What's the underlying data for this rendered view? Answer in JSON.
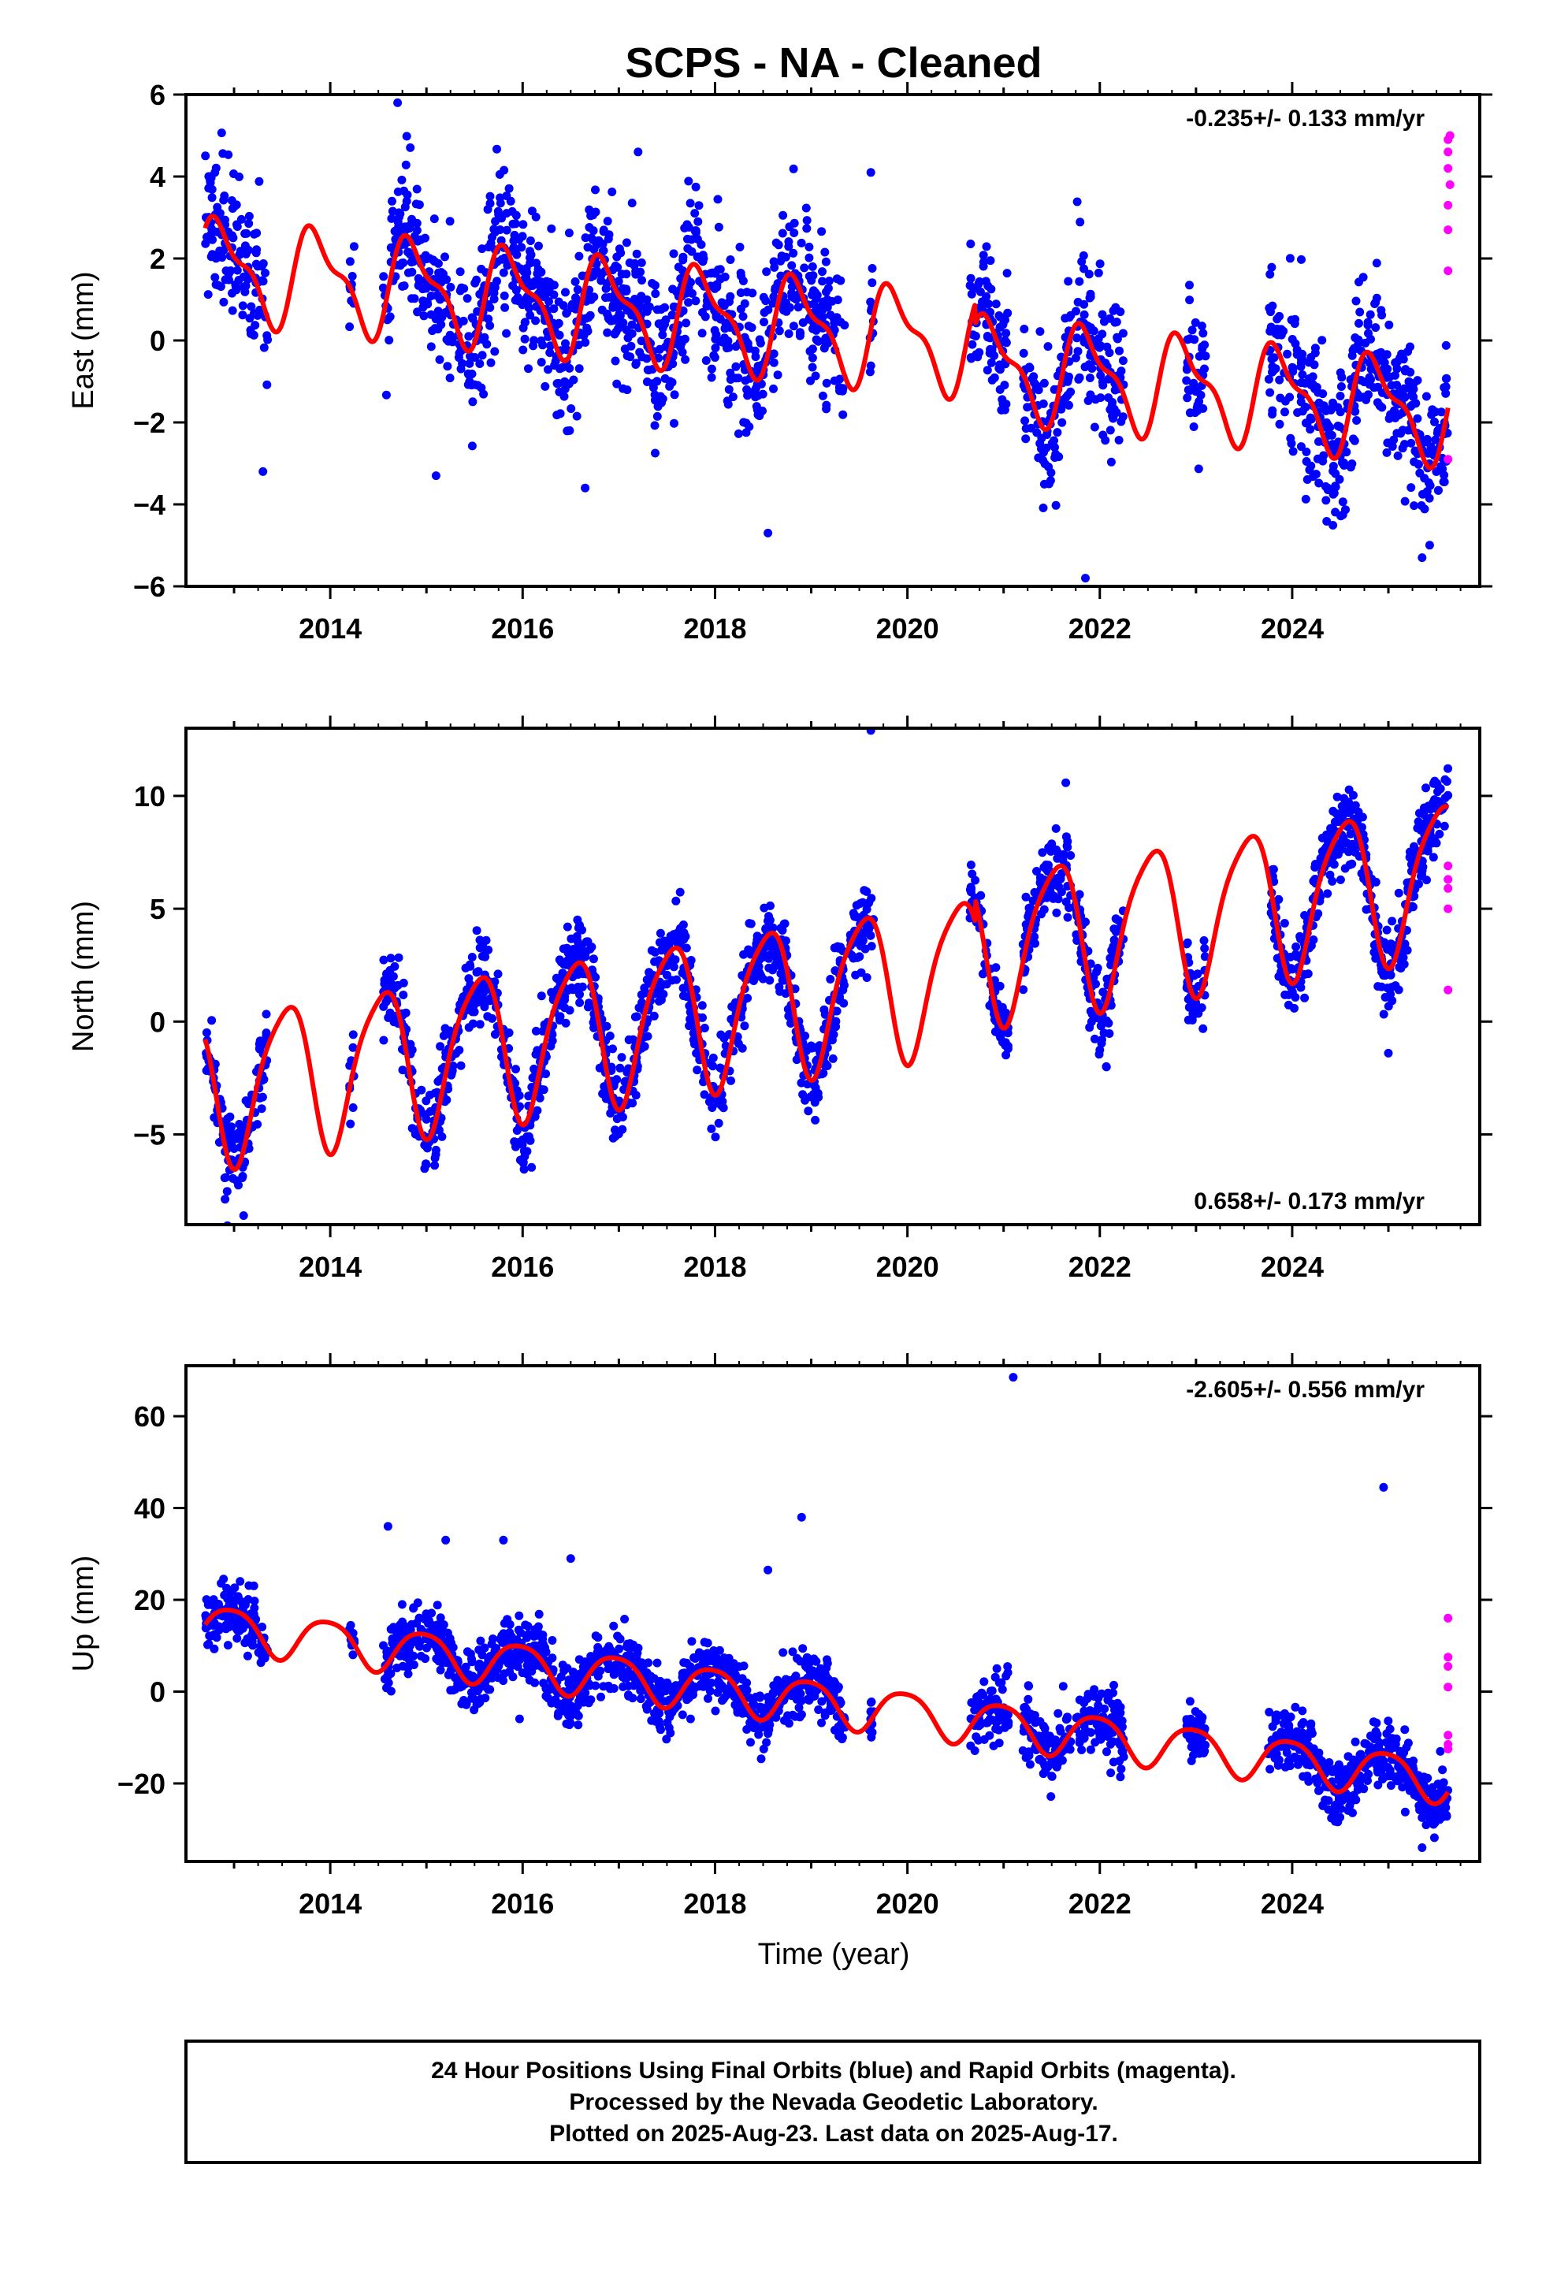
{
  "title": "SCPS  - NA - Cleaned",
  "xlabel": "Time (year)",
  "footer": [
    "24 Hour Positions Using Final Orbits (blue) and Rapid Orbits (magenta).",
    "Processed by the Nevada Geodetic Laboratory.",
    "Plotted on 2025-Aug-23. Last data on 2025-Aug-17."
  ],
  "colors": {
    "final": "#0000ff",
    "rapid": "#ff00ff",
    "model": "#ff0000",
    "frame": "#000000"
  },
  "chart_data": [
    {
      "type": "scatter",
      "ylabel": "East (mm)",
      "rate": "-0.235+/- 0.133 mm/yr",
      "rate_position": "top-right",
      "xlim": [
        2012.5,
        2025.95
      ],
      "ylim": [
        -6,
        6
      ],
      "xticks": [
        2014,
        2016,
        2018,
        2020,
        2022,
        2024
      ],
      "xtick_labels": [
        "2014",
        "2016",
        "2018",
        "2020",
        "2022",
        "2024"
      ],
      "yticks": [
        -6,
        -4,
        -2,
        0,
        2,
        4,
        6
      ],
      "ytick_labels": [
        "−6",
        "−4",
        "−2",
        "0",
        "2",
        "4",
        "6"
      ],
      "model": {
        "intercept": 0.3,
        "ref_year": 2019,
        "rate": -0.235,
        "annual": 1.1,
        "phase": 0.62,
        "semiannual": 0.45,
        "semiannual_phase": 0.1,
        "offsets": [
          {
            "year": 2020.7,
            "size": -0.5
          }
        ],
        "x_start": 2012.7,
        "x_end": 2025.62
      },
      "data_segments": [
        {
          "start": 2012.7,
          "end": 2013.35,
          "noise": 0.9
        },
        {
          "start": 2014.2,
          "end": 2014.25,
          "noise": 0.8
        },
        {
          "start": 2014.55,
          "end": 2019.35,
          "noise": 0.9
        },
        {
          "start": 2019.6,
          "end": 2019.65,
          "noise": 0.8
        },
        {
          "start": 2020.65,
          "end": 2021.05,
          "noise": 0.8
        },
        {
          "start": 2021.2,
          "end": 2021.7,
          "noise": 0.9
        },
        {
          "start": 2021.75,
          "end": 2022.25,
          "noise": 1.0
        },
        {
          "start": 2022.9,
          "end": 2023.1,
          "noise": 0.8
        },
        {
          "start": 2023.75,
          "end": 2025.62,
          "noise": 0.9
        }
      ],
      "rapid_points": [
        {
          "x": 2025.62,
          "y": 4.9
        },
        {
          "x": 2025.62,
          "y": 4.6
        },
        {
          "x": 2025.62,
          "y": 4.2
        },
        {
          "x": 2025.62,
          "y": 3.3
        },
        {
          "x": 2025.62,
          "y": 2.7
        },
        {
          "x": 2025.62,
          "y": 1.7
        },
        {
          "x": 2025.62,
          "y": -2.9
        },
        {
          "x": 2025.64,
          "y": 5.0
        },
        {
          "x": 2025.64,
          "y": 3.8
        }
      ],
      "outliers": [
        {
          "x": 2014.7,
          "y": 5.8
        },
        {
          "x": 2015.1,
          "y": -3.3
        },
        {
          "x": 2016.65,
          "y": -3.6
        },
        {
          "x": 2018.55,
          "y": -4.7
        },
        {
          "x": 2021.85,
          "y": -5.8
        },
        {
          "x": 2025.35,
          "y": -5.3
        },
        {
          "x": 2013.3,
          "y": -3.2
        },
        {
          "x": 2017.2,
          "y": 4.6
        },
        {
          "x": 2019.62,
          "y": 4.1
        }
      ]
    },
    {
      "type": "scatter",
      "ylabel": "North (mm)",
      "rate": "0.658+/- 0.173 mm/yr",
      "rate_position": "bottom-right",
      "xlim": [
        2012.5,
        2025.95
      ],
      "ylim": [
        -9,
        13
      ],
      "xticks": [
        2014,
        2016,
        2018,
        2020,
        2022,
        2024
      ],
      "xtick_labels": [
        "2014",
        "2016",
        "2018",
        "2020",
        "2022",
        "2024"
      ],
      "yticks": [
        -5,
        0,
        5,
        10
      ],
      "ytick_labels": [
        "−5",
        "0",
        "5",
        "10"
      ],
      "model": {
        "intercept": 1.2,
        "ref_year": 2019,
        "rate": 0.658,
        "annual": 3.3,
        "phase": 0.28,
        "semiannual": 0.6,
        "semiannual_phase": 0.1,
        "offsets": [
          {
            "year": 2020.7,
            "size": 1.0
          }
        ],
        "x_start": 2012.7,
        "x_end": 2025.62
      },
      "data_segments": [
        {
          "start": 2012.7,
          "end": 2013.35,
          "noise": 0.9
        },
        {
          "start": 2014.2,
          "end": 2014.25,
          "noise": 0.8
        },
        {
          "start": 2014.55,
          "end": 2019.35,
          "noise": 0.9
        },
        {
          "start": 2019.4,
          "end": 2019.65,
          "noise": 0.9
        },
        {
          "start": 2020.65,
          "end": 2021.05,
          "noise": 0.8
        },
        {
          "start": 2021.2,
          "end": 2021.7,
          "noise": 0.9
        },
        {
          "start": 2021.75,
          "end": 2022.25,
          "noise": 1.0
        },
        {
          "start": 2022.9,
          "end": 2023.1,
          "noise": 0.8
        },
        {
          "start": 2023.75,
          "end": 2025.62,
          "noise": 0.9
        }
      ],
      "rapid_points": [
        {
          "x": 2025.62,
          "y": 6.9
        },
        {
          "x": 2025.62,
          "y": 6.3
        },
        {
          "x": 2025.62,
          "y": 5.9
        },
        {
          "x": 2025.62,
          "y": 5.0
        },
        {
          "x": 2025.62,
          "y": 1.4
        }
      ],
      "outliers": [
        {
          "x": 2019.62,
          "y": 12.9
        },
        {
          "x": 2013.1,
          "y": -8.6
        },
        {
          "x": 2025.0,
          "y": -1.4
        }
      ]
    },
    {
      "type": "scatter",
      "ylabel": "Up (mm)",
      "rate": "-2.605+/- 0.556 mm/yr",
      "rate_position": "top-right",
      "xlim": [
        2012.5,
        2025.95
      ],
      "ylim": [
        -37,
        71
      ],
      "xticks": [
        2014,
        2016,
        2018,
        2020,
        2022,
        2024
      ],
      "xtick_labels": [
        "2014",
        "2016",
        "2018",
        "2020",
        "2022",
        "2024"
      ],
      "yticks": [
        -20,
        0,
        20,
        40,
        60
      ],
      "ytick_labels": [
        "−20",
        "0",
        "20",
        "40",
        "60"
      ],
      "model": {
        "intercept": -2.0,
        "ref_year": 2019,
        "rate": -2.605,
        "annual": 4.8,
        "phase": 0.72,
        "semiannual": 0.8,
        "semiannual_phase": 0.1,
        "offsets": [],
        "x_start": 2012.7,
        "x_end": 2025.62
      },
      "data_segments": [
        {
          "start": 2012.7,
          "end": 2013.35,
          "noise": 3.0
        },
        {
          "start": 2014.2,
          "end": 2014.25,
          "noise": 2.5
        },
        {
          "start": 2014.55,
          "end": 2019.35,
          "noise": 3.3
        },
        {
          "start": 2019.6,
          "end": 2019.65,
          "noise": 3.0
        },
        {
          "start": 2020.65,
          "end": 2021.05,
          "noise": 3.3
        },
        {
          "start": 2021.2,
          "end": 2021.7,
          "noise": 3.3
        },
        {
          "start": 2021.75,
          "end": 2022.25,
          "noise": 3.6
        },
        {
          "start": 2022.9,
          "end": 2023.1,
          "noise": 3.0
        },
        {
          "start": 2023.75,
          "end": 2025.62,
          "noise": 3.3
        }
      ],
      "rapid_points": [
        {
          "x": 2025.62,
          "y": 16.0
        },
        {
          "x": 2025.62,
          "y": 7.5
        },
        {
          "x": 2025.62,
          "y": 5.5
        },
        {
          "x": 2025.62,
          "y": 1.0
        },
        {
          "x": 2025.62,
          "y": -9.5
        },
        {
          "x": 2025.62,
          "y": -11.5
        },
        {
          "x": 2025.62,
          "y": -12.5
        }
      ],
      "outliers": [
        {
          "x": 2021.1,
          "y": 68.5
        },
        {
          "x": 2024.95,
          "y": 44.5
        },
        {
          "x": 2018.9,
          "y": 38.0
        },
        {
          "x": 2014.6,
          "y": 36.0
        },
        {
          "x": 2015.2,
          "y": 33.0
        },
        {
          "x": 2015.8,
          "y": 33.0
        },
        {
          "x": 2016.5,
          "y": 29.0
        },
        {
          "x": 2018.55,
          "y": 26.5
        },
        {
          "x": 2025.35,
          "y": -34.0
        }
      ]
    }
  ]
}
